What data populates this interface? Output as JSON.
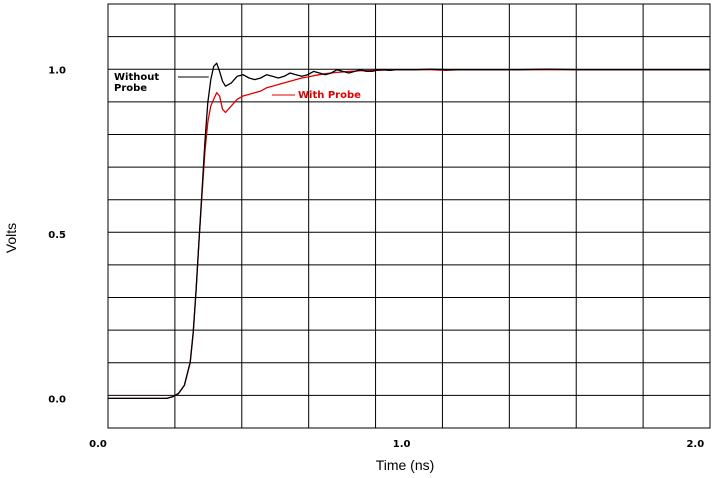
{
  "chart_data": {
    "type": "line",
    "title": "",
    "xlabel": "Time (ns)",
    "ylabel": "Volts",
    "xlim": [
      0.0,
      2.05
    ],
    "ylim": [
      -0.09,
      1.2
    ],
    "grid": true,
    "x_ticks": [
      {
        "value": 0.0,
        "label": "0.0"
      },
      {
        "value": 1.0,
        "label": "1.0"
      },
      {
        "value": 2.0,
        "label": "2.0"
      }
    ],
    "y_ticks": [
      {
        "value": 0.0,
        "label": "0.0"
      },
      {
        "value": 0.5,
        "label": "0.5"
      },
      {
        "value": 1.0,
        "label": "1.0"
      }
    ],
    "colors": {
      "without_probe": "#000000",
      "with_probe": "#e00000"
    },
    "series": [
      {
        "name": "Without Probe",
        "color": "#000000",
        "x": [
          0.0,
          0.2,
          0.22,
          0.24,
          0.26,
          0.28,
          0.29,
          0.3,
          0.31,
          0.32,
          0.33,
          0.34,
          0.35,
          0.36,
          0.37,
          0.38,
          0.39,
          0.4,
          0.42,
          0.44,
          0.46,
          0.48,
          0.5,
          0.52,
          0.54,
          0.56,
          0.58,
          0.6,
          0.62,
          0.64,
          0.66,
          0.68,
          0.7,
          0.72,
          0.74,
          0.76,
          0.78,
          0.8,
          0.82,
          0.84,
          0.86,
          0.88,
          0.9,
          0.92,
          0.94,
          0.96,
          0.98,
          1.0,
          1.05,
          1.1,
          1.15,
          1.2,
          1.3,
          1.4,
          1.5,
          1.6,
          1.7,
          1.8,
          1.9,
          2.0,
          2.05
        ],
        "y": [
          0.0,
          0.0,
          0.005,
          0.015,
          0.04,
          0.11,
          0.2,
          0.33,
          0.48,
          0.63,
          0.78,
          0.9,
          0.97,
          1.01,
          1.02,
          0.995,
          0.965,
          0.95,
          0.96,
          0.98,
          0.985,
          0.975,
          0.97,
          0.975,
          0.985,
          0.98,
          0.975,
          0.98,
          0.99,
          0.985,
          0.98,
          0.985,
          0.995,
          0.99,
          0.985,
          0.99,
          1.0,
          0.995,
          0.99,
          0.995,
          1.0,
          0.995,
          0.995,
          1.0,
          1.0,
          0.998,
          1.0,
          1.0,
          1.0,
          1.002,
          1.0,
          1.0,
          1.0,
          1.0,
          1.002,
          1.0,
          1.0,
          1.0,
          1.0,
          1.0,
          1.0
        ]
      },
      {
        "name": "With Probe",
        "color": "#e00000",
        "x": [
          0.0,
          0.2,
          0.22,
          0.24,
          0.26,
          0.28,
          0.29,
          0.3,
          0.31,
          0.32,
          0.33,
          0.34,
          0.35,
          0.36,
          0.37,
          0.38,
          0.39,
          0.4,
          0.42,
          0.44,
          0.46,
          0.48,
          0.5,
          0.52,
          0.54,
          0.56,
          0.58,
          0.6,
          0.62,
          0.64,
          0.66,
          0.68,
          0.7,
          0.72,
          0.74,
          0.76,
          0.78,
          0.8,
          0.82,
          0.84,
          0.86,
          0.88,
          0.9,
          0.92,
          0.94,
          0.96,
          0.98,
          1.0,
          1.05,
          1.1,
          1.15,
          1.2,
          1.3,
          1.4,
          1.5,
          1.6,
          1.7,
          1.8,
          1.9,
          2.0,
          2.05
        ],
        "y": [
          0.0,
          0.0,
          0.005,
          0.015,
          0.04,
          0.11,
          0.2,
          0.33,
          0.48,
          0.62,
          0.75,
          0.84,
          0.89,
          0.91,
          0.93,
          0.92,
          0.88,
          0.87,
          0.89,
          0.91,
          0.92,
          0.925,
          0.93,
          0.935,
          0.945,
          0.95,
          0.955,
          0.96,
          0.965,
          0.97,
          0.975,
          0.978,
          0.982,
          0.985,
          0.988,
          0.99,
          0.992,
          0.993,
          0.995,
          0.996,
          0.997,
          0.997,
          0.998,
          0.998,
          0.999,
          0.999,
          1.0,
          1.0,
          1.0,
          1.0,
          0.998,
          1.0,
          1.0,
          1.0,
          1.0,
          1.0,
          1.0,
          1.0,
          1.0,
          1.0,
          1.0
        ]
      }
    ],
    "annotations": [
      {
        "id": "without-probe-label",
        "lines": [
          "Without",
          "Probe"
        ],
        "color": "#000000",
        "x": 0.35,
        "y": 0.985
      },
      {
        "id": "with-probe-label",
        "lines": [
          "With Probe"
        ],
        "color": "#e00000",
        "x": 0.52,
        "y": 0.925
      }
    ]
  }
}
